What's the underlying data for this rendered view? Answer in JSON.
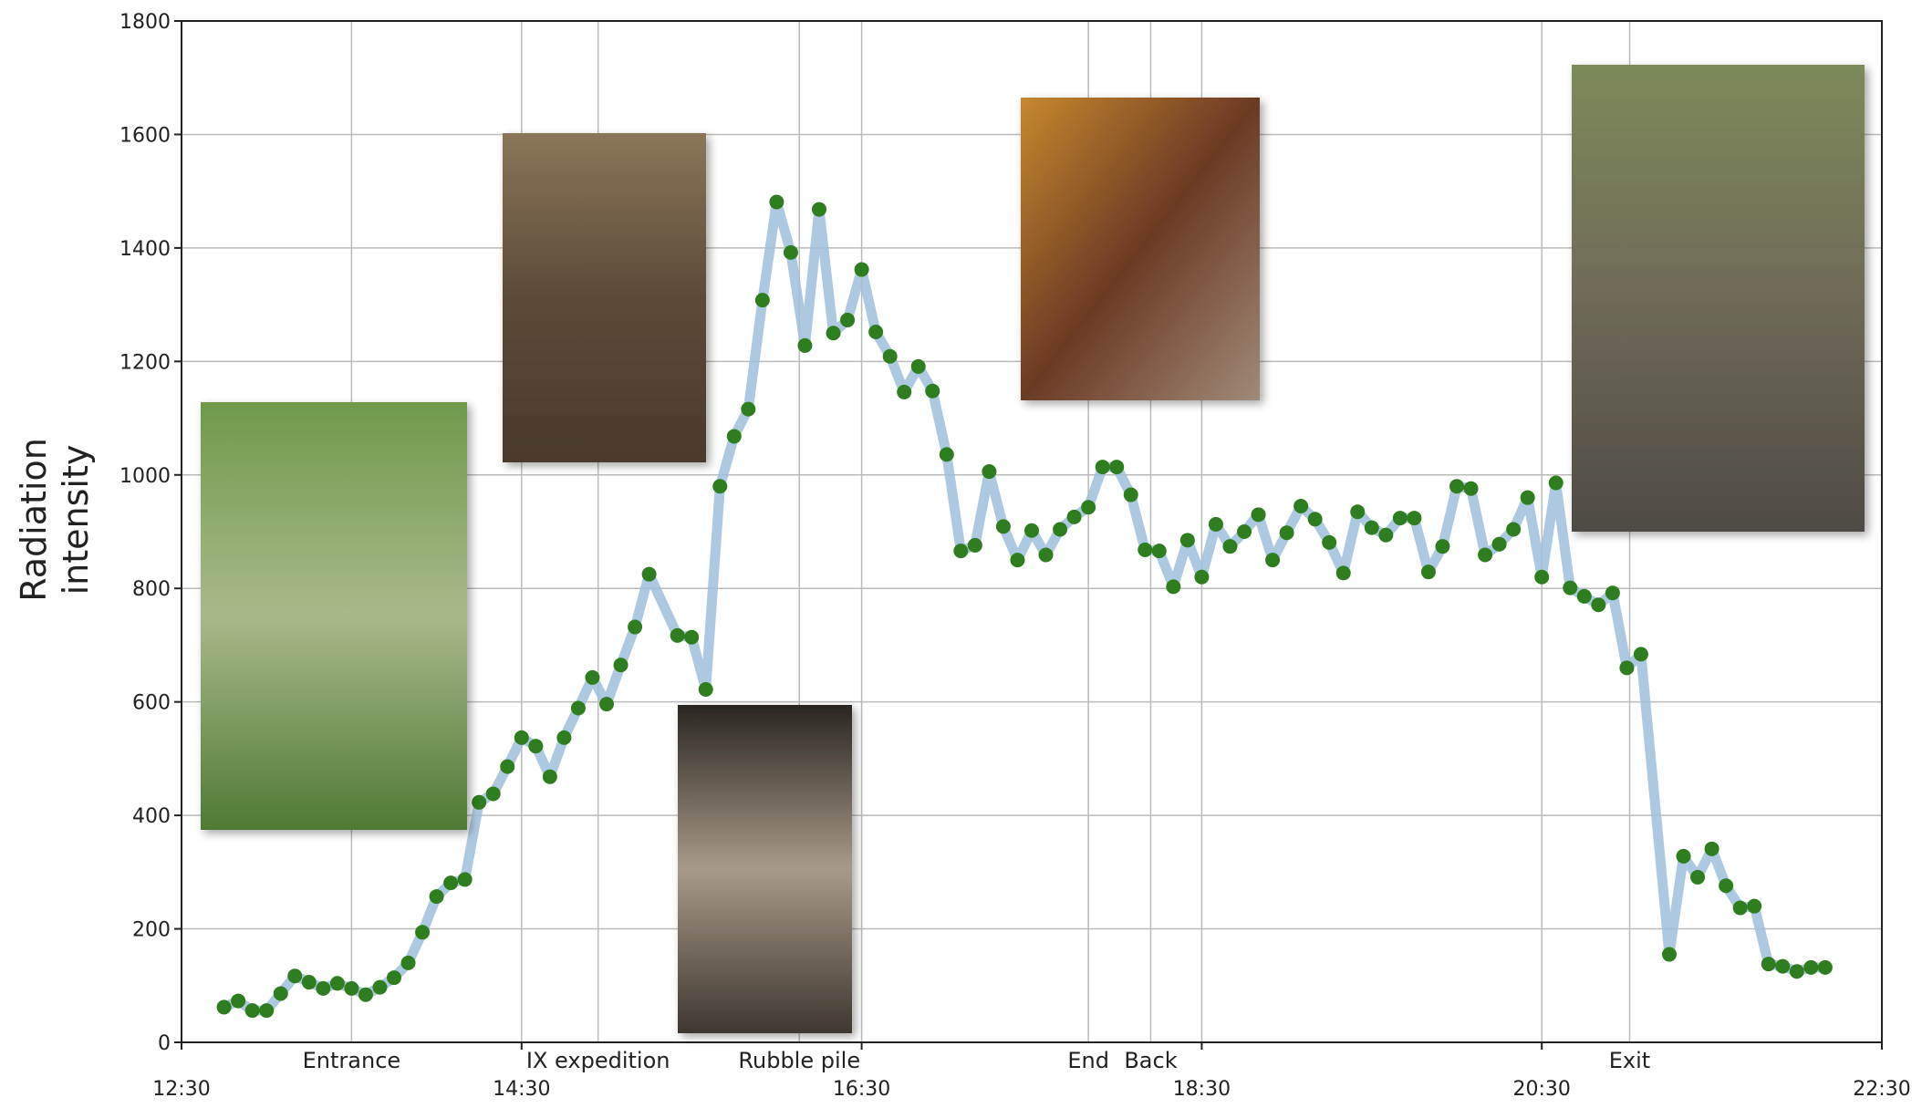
{
  "chart_data": {
    "type": "line",
    "y_label_lines": [
      "Radiation",
      "intensity"
    ],
    "x": [
      765,
      770,
      775,
      780,
      785,
      790,
      795,
      800,
      805,
      810,
      815,
      820,
      825,
      830,
      835,
      840,
      845,
      850,
      855,
      860,
      865,
      870,
      875,
      880,
      885,
      890,
      895,
      900,
      905,
      910,
      915,
      925,
      930,
      935,
      940,
      945,
      950,
      955,
      960,
      965,
      970,
      975,
      980,
      985,
      990,
      995,
      1000,
      1005,
      1010,
      1015,
      1020,
      1025,
      1030,
      1035,
      1040,
      1045,
      1050,
      1055,
      1060,
      1065,
      1070,
      1075,
      1080,
      1085,
      1090,
      1095,
      1100,
      1105,
      1110,
      1115,
      1120,
      1125,
      1130,
      1135,
      1140,
      1145,
      1150,
      1155,
      1160,
      1165,
      1170,
      1175,
      1180,
      1185,
      1190,
      1195,
      1200,
      1205,
      1210,
      1215,
      1220,
      1225,
      1230,
      1235,
      1240,
      1245,
      1250,
      1255,
      1260,
      1265,
      1275,
      1280,
      1285,
      1290,
      1295,
      1300,
      1305,
      1310,
      1315,
      1320,
      1325,
      1330
    ],
    "values": [
      62,
      73,
      56,
      56,
      86,
      117,
      106,
      95,
      104,
      95,
      84,
      97,
      114,
      140,
      194,
      257,
      281,
      287,
      423,
      438,
      486,
      537,
      522,
      468,
      537,
      589,
      643,
      596,
      665,
      732,
      825,
      717,
      714,
      622,
      980,
      1068,
      1116,
      1308,
      1481,
      1392,
      1228,
      1468,
      1250,
      1273,
      1362,
      1252,
      1209,
      1146,
      1191,
      1148,
      1036,
      866,
      876,
      1006,
      909,
      850,
      902,
      859,
      904,
      926,
      943,
      1014,
      1014,
      965,
      868,
      866,
      803,
      885,
      820,
      913,
      874,
      900,
      930,
      850,
      898,
      945,
      922,
      881,
      827,
      935,
      907,
      894,
      924,
      924,
      829,
      874,
      980,
      976,
      859,
      878,
      904,
      960,
      820,
      986,
      801,
      786,
      771,
      792,
      660,
      684,
      155,
      328,
      291,
      341,
      276,
      237,
      240,
      138,
      134,
      125,
      132,
      132
    ],
    "color": "#2e7d1f",
    "line_color": "#9fbfdc",
    "xlim": [
      750,
      1350
    ],
    "xticks": [
      {
        "value": 750,
        "label": "12:30"
      },
      {
        "value": 870,
        "label": "14:30"
      },
      {
        "value": 990,
        "label": "16:30"
      },
      {
        "value": 1110,
        "label": "18:30"
      },
      {
        "value": 1230,
        "label": "20:30"
      },
      {
        "value": 1350,
        "label": "22:30"
      }
    ],
    "ylim": [
      0,
      1800
    ],
    "yticks": [
      0,
      200,
      400,
      600,
      800,
      1000,
      1200,
      1400,
      1600,
      1800
    ],
    "grid": true,
    "annotations": [
      {
        "text": "Entrance",
        "x": 810
      },
      {
        "text": "IX expedition",
        "x": 897
      },
      {
        "text": "Rubble pile",
        "x": 968
      },
      {
        "text": "End",
        "x": 1070
      },
      {
        "text": "Back",
        "x": 1092
      },
      {
        "text": "Exit",
        "x": 1261
      }
    ]
  }
}
